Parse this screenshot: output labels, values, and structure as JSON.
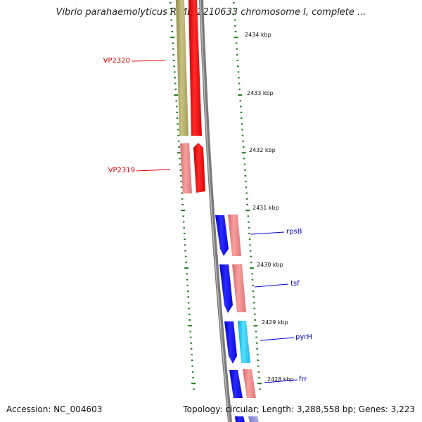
{
  "title": "Vibrio parahaemolyticus RIMD 2210633 chromosome I, complete ...",
  "footer": {
    "accession": "Accession: NC_004603",
    "summary": "Topology: circular; Length: 3,288,558 bp; Genes: 3,223"
  },
  "colors": {
    "backbone": "#7f7f7f",
    "tick": "#1a7a1a",
    "cds_olive": "#b5ae6a",
    "cds_red": "#ff0000",
    "cds_pink": "#ef7f7f",
    "cds_blue": "#1010ee",
    "cds_cyan": "#22c8ee",
    "label_red": "#e00000",
    "label_blue": "#0000cc"
  },
  "scale_labels": [
    "2434 kbp",
    "2433 kbp",
    "2432 kbp",
    "2431 kbp",
    "2430 kbp",
    "2429 kbp",
    "2428 kbp"
  ],
  "gene_labels": [
    {
      "name": "VP2320",
      "color": "label_red"
    },
    {
      "name": "VP2319",
      "color": "label_red"
    },
    {
      "name": "rpsB",
      "color": "label_blue"
    },
    {
      "name": "tsf",
      "color": "label_blue"
    },
    {
      "name": "pyrH",
      "color": "label_blue"
    },
    {
      "name": "frr",
      "color": "label_blue"
    }
  ]
}
